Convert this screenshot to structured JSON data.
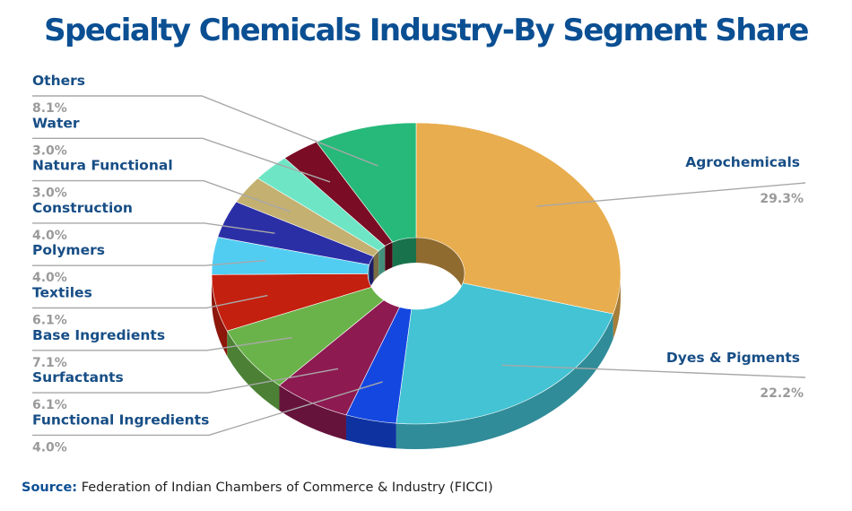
{
  "chart_data": {
    "type": "pie",
    "title": "Specialty Chemicals Industry-By Segment Share",
    "source_label": "Source:",
    "source_text": "Federation of Indian Chambers of Commerce & Industry (FICCI)",
    "unit": "%",
    "slices": [
      {
        "name": "Agrochemicals",
        "value": 29.3,
        "value_label": "29.3%",
        "color": "#e8ad4e"
      },
      {
        "name": "Dyes & Pigments",
        "value": 22.2,
        "value_label": "22.2%",
        "color": "#43c3d3"
      },
      {
        "name": "Functional  Ingredients",
        "value": 4.0,
        "value_label": "4.0%",
        "color": "#1447e0"
      },
      {
        "name": "Surfactants",
        "value": 6.1,
        "value_label": "6.1%",
        "color": "#8e1a52"
      },
      {
        "name": "Base Ingredients",
        "value": 7.1,
        "value_label": "7.1%",
        "color": "#6ab34a"
      },
      {
        "name": "Textiles",
        "value": 6.1,
        "value_label": "6.1%",
        "color": "#c4200f"
      },
      {
        "name": "Polymers",
        "value": 4.0,
        "value_label": "4.0%",
        "color": "#52cdf2"
      },
      {
        "name": "Construction",
        "value": 4.0,
        "value_label": "4.0%",
        "color": "#2b2fa6"
      },
      {
        "name": "Natura Functional",
        "value": 3.0,
        "value_label": "3.0%",
        "color": "#c4b070"
      },
      {
        "name": "Water",
        "value": 3.0,
        "value_label": "3.0%",
        "color": "#6ee6c6"
      },
      {
        "name": "Others",
        "value": 3.0,
        "value_label": "3.0%",
        "color": "#7a0c25"
      },
      {
        "name": "",
        "value": 8.1,
        "value_label": "8.1%",
        "color": "#26b97a"
      }
    ]
  }
}
